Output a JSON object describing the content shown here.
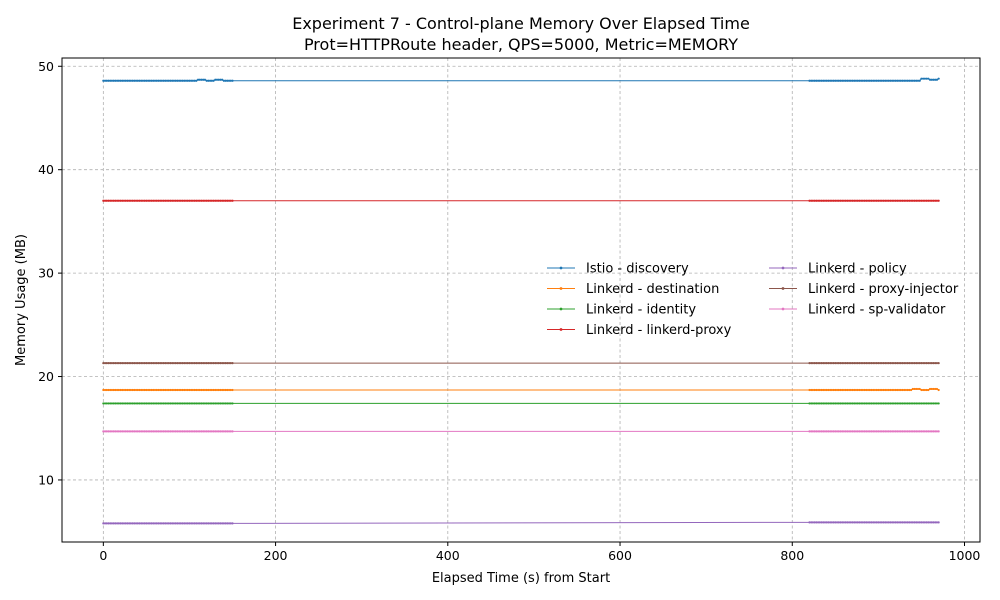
{
  "chart_data": {
    "type": "line",
    "title": "Experiment 7 - Control-plane Memory Over Elapsed Time",
    "subtitle": "Prot=HTTPRoute header, QPS=5000, Metric=MEMORY",
    "xlabel": "Elapsed Time (s) from Start",
    "ylabel": "Memory Usage (MB)",
    "xlim": [
      -48,
      1018
    ],
    "ylim": [
      4.0,
      50.8
    ],
    "xticks": [
      0,
      200,
      400,
      600,
      800,
      1000
    ],
    "yticks": [
      10,
      20,
      30,
      40,
      50
    ],
    "grid": true,
    "legend": {
      "placement": "center-right",
      "columns": 2
    },
    "sampling": {
      "segments": [
        {
          "start": 0,
          "end": 150
        },
        {
          "start": 820,
          "end": 970
        }
      ],
      "step": 2
    },
    "series": [
      {
        "name": "Istio - discovery",
        "color": "#1f77b4",
        "points": [
          [
            0,
            48.6
          ],
          [
            60,
            48.6
          ],
          [
            105,
            48.6
          ],
          [
            110,
            48.7
          ],
          [
            120,
            48.6
          ],
          [
            130,
            48.7
          ],
          [
            140,
            48.6
          ],
          [
            150,
            48.6
          ],
          [
            820,
            48.6
          ],
          [
            900,
            48.6
          ],
          [
            945,
            48.6
          ],
          [
            950,
            48.8
          ],
          [
            960,
            48.7
          ],
          [
            970,
            48.8
          ]
        ]
      },
      {
        "name": "Linkerd - destination",
        "color": "#ff7f0e",
        "points": [
          [
            0,
            18.7
          ],
          [
            150,
            18.7
          ],
          [
            820,
            18.7
          ],
          [
            930,
            18.7
          ],
          [
            940,
            18.8
          ],
          [
            950,
            18.7
          ],
          [
            960,
            18.8
          ],
          [
            970,
            18.7
          ]
        ]
      },
      {
        "name": "Linkerd - identity",
        "color": "#2ca02c",
        "points": [
          [
            0,
            17.4
          ],
          [
            150,
            17.4
          ],
          [
            820,
            17.4
          ],
          [
            970,
            17.4
          ]
        ]
      },
      {
        "name": "Linkerd - linkerd-proxy",
        "color": "#d62728",
        "points": [
          [
            0,
            37.0
          ],
          [
            150,
            37.0
          ],
          [
            820,
            37.0
          ],
          [
            970,
            37.0
          ]
        ]
      },
      {
        "name": "Linkerd - policy",
        "color": "#9467bd",
        "points": [
          [
            0,
            5.8
          ],
          [
            150,
            5.8
          ],
          [
            820,
            5.9
          ],
          [
            970,
            5.9
          ]
        ]
      },
      {
        "name": "Linkerd - proxy-injector",
        "color": "#8c564b",
        "points": [
          [
            0,
            21.3
          ],
          [
            150,
            21.3
          ],
          [
            820,
            21.3
          ],
          [
            970,
            21.3
          ]
        ]
      },
      {
        "name": "Linkerd - sp-validator",
        "color": "#e377c2",
        "points": [
          [
            0,
            14.7
          ],
          [
            150,
            14.7
          ],
          [
            820,
            14.7
          ],
          [
            970,
            14.7
          ]
        ]
      }
    ]
  }
}
